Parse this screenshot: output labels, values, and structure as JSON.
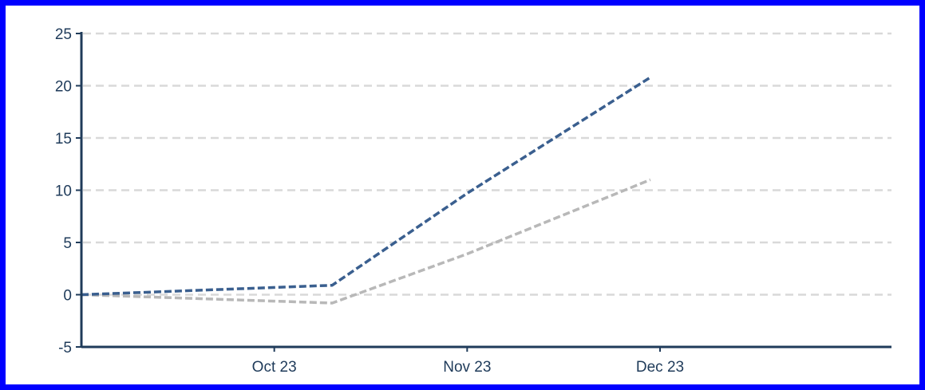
{
  "chart_data": {
    "type": "line",
    "x_labels": [
      "Oct 23",
      "Nov 23",
      "Dec 23"
    ],
    "x_range": [
      0,
      4.2
    ],
    "x_ticks": [
      1,
      2,
      3
    ],
    "ylim": [
      -5,
      25
    ],
    "y_ticks": [
      -5,
      0,
      5,
      10,
      15,
      20,
      25
    ],
    "y_tick_labels": [
      "-5",
      "0",
      "5",
      "10",
      "15",
      "20",
      "25"
    ],
    "grid": true,
    "legend": "none",
    "series": [
      {
        "color": "#3a5f8f",
        "line_style": "dashed",
        "points": [
          {
            "x": 0,
            "y": 0
          },
          {
            "x": 1.3,
            "y": 0.9
          },
          {
            "x": 2,
            "y": 9.7
          },
          {
            "x": 2.95,
            "y": 20.8
          }
        ]
      },
      {
        "color": "#b8b8b8",
        "line_style": "dashed",
        "points": [
          {
            "x": 0,
            "y": 0
          },
          {
            "x": 1.3,
            "y": -0.8
          },
          {
            "x": 2,
            "y": 3.9
          },
          {
            "x": 2.95,
            "y": 11.0
          }
        ]
      }
    ]
  },
  "colors": {
    "frame_border": "#0000ff",
    "axis": "#1f3b5a",
    "grid": "#d9d9d9"
  }
}
